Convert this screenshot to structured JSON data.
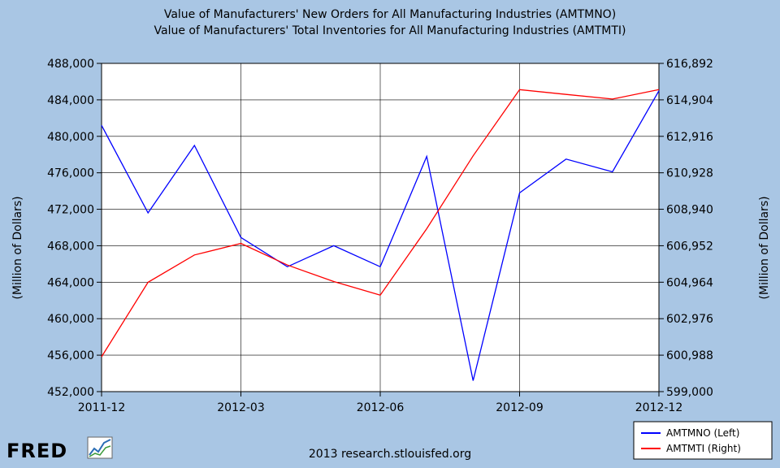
{
  "chart_data": {
    "type": "line",
    "title": "Value of Manufacturers' New Orders for All Manufacturing Industries (AMTMNO)",
    "subtitle": "Value of Manufacturers' Total Inventories for All Manufacturing Industries (AMTMTI)",
    "ylabel_left": "(Million of Dollars)",
    "ylabel_right": "(Million of Dollars)",
    "x": [
      "2011-12",
      "2012-01",
      "2012-02",
      "2012-03",
      "2012-04",
      "2012-05",
      "2012-06",
      "2012-07",
      "2012-08",
      "2012-09",
      "2012-10",
      "2012-11",
      "2012-12"
    ],
    "xticks": [
      "2011-12",
      "2012-03",
      "2012-06",
      "2012-09",
      "2012-12"
    ],
    "ylim_left": [
      452000,
      488000
    ],
    "yticks_left": [
      "452,000",
      "456,000",
      "460,000",
      "464,000",
      "468,000",
      "472,000",
      "476,000",
      "480,000",
      "484,000",
      "488,000"
    ],
    "ylim_right": [
      599000,
      616892
    ],
    "yticks_right": [
      "599,000",
      "600,988",
      "602,976",
      "604,964",
      "606,952",
      "608,940",
      "610,928",
      "612,916",
      "614,904",
      "616,892"
    ],
    "grid": true,
    "legend_position": "bottom-right",
    "series": [
      {
        "name": "AMTMNO (Left)",
        "axis": "left",
        "color": "#0000ff",
        "values": [
          481200,
          471600,
          479000,
          468900,
          465700,
          468000,
          465700,
          477800,
          453200,
          473800,
          477500,
          476100,
          485000
        ]
      },
      {
        "name": "AMTMTI (Right)",
        "axis": "right",
        "color": "#ff0000",
        "values": [
          600900,
          604960,
          606450,
          607080,
          605900,
          605000,
          604260,
          607880,
          611850,
          615460,
          615200,
          614950,
          615460
        ]
      }
    ]
  },
  "footer": {
    "logo_text": "FRED",
    "source": "2013 research.stlouisfed.org"
  }
}
